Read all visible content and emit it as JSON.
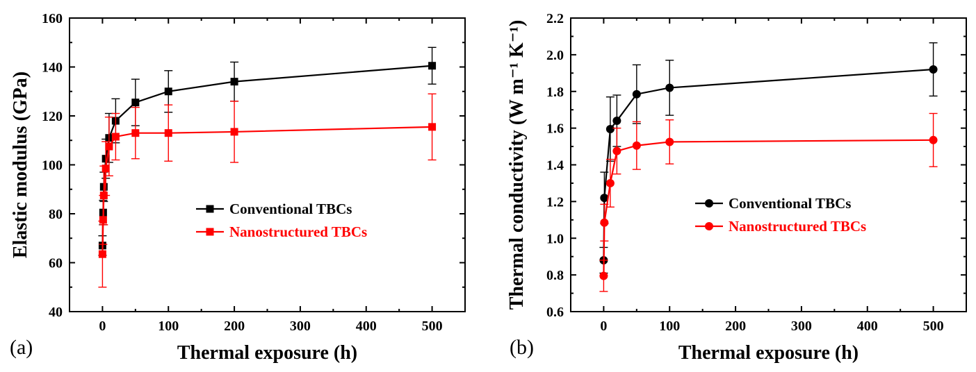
{
  "chart_data": [
    {
      "type": "line",
      "panel_label": "(a)",
      "xlabel": "Thermal exposure (h)",
      "ylabel": "Elastic modulus (GPa)",
      "xlim": [
        -50,
        550
      ],
      "ylim": [
        40,
        160
      ],
      "xticks": [
        0,
        100,
        200,
        300,
        400,
        500
      ],
      "yticks": [
        40,
        60,
        80,
        100,
        120,
        140,
        160
      ],
      "grid": false,
      "legend_position": "center-right",
      "series": [
        {
          "name": "Conventional TBCs",
          "color": "#000000",
          "marker": "square",
          "x": [
            0,
            1,
            2,
            5,
            10,
            20,
            50,
            100,
            200,
            500
          ],
          "y": [
            67,
            80.5,
            91,
            102.5,
            111,
            118,
            125.5,
            130,
            134,
            140.5
          ],
          "err": [
            4,
            5,
            6,
            8,
            10,
            9,
            9.5,
            8.5,
            8,
            7.5
          ]
        },
        {
          "name": "Nanostructured TBCs",
          "color": "#ff0000",
          "marker": "square",
          "x": [
            0,
            1,
            2,
            5,
            10,
            20,
            50,
            100,
            200,
            500
          ],
          "y": [
            63.5,
            77.5,
            87.5,
            98.5,
            107.5,
            111.5,
            113,
            113,
            113.5,
            115.5
          ],
          "err": [
            13.5,
            10,
            12,
            11,
            12,
            9.5,
            10.5,
            11.5,
            12.5,
            13.5
          ]
        }
      ]
    },
    {
      "type": "line",
      "panel_label": "(b)",
      "xlabel": "Thermal exposure (h)",
      "ylabel": "Thermal conductivity (W m⁻¹ K⁻¹)",
      "xlim": [
        -50,
        550
      ],
      "ylim": [
        0.6,
        2.2
      ],
      "xticks": [
        0,
        100,
        200,
        300,
        400,
        500
      ],
      "yticks": [
        0.6,
        0.8,
        1.0,
        1.2,
        1.4,
        1.6,
        1.8,
        2.0,
        2.2
      ],
      "grid": false,
      "legend_position": "center-right",
      "series": [
        {
          "name": "Conventional TBCs",
          "color": "#000000",
          "marker": "circle",
          "x": [
            0,
            1,
            10,
            20,
            50,
            100,
            500
          ],
          "y": [
            0.88,
            1.22,
            1.595,
            1.64,
            1.785,
            1.82,
            1.92
          ],
          "err": [
            0.07,
            0.14,
            0.175,
            0.14,
            0.16,
            0.15,
            0.145
          ]
        },
        {
          "name": "Nanostructured TBCs",
          "color": "#ff0000",
          "marker": "circle",
          "x": [
            0,
            1,
            10,
            20,
            50,
            100,
            500
          ],
          "y": [
            0.795,
            1.085,
            1.3,
            1.475,
            1.505,
            1.525,
            1.535
          ],
          "err": [
            0.085,
            0.1,
            0.13,
            0.125,
            0.13,
            0.12,
            0.145
          ]
        }
      ]
    }
  ]
}
